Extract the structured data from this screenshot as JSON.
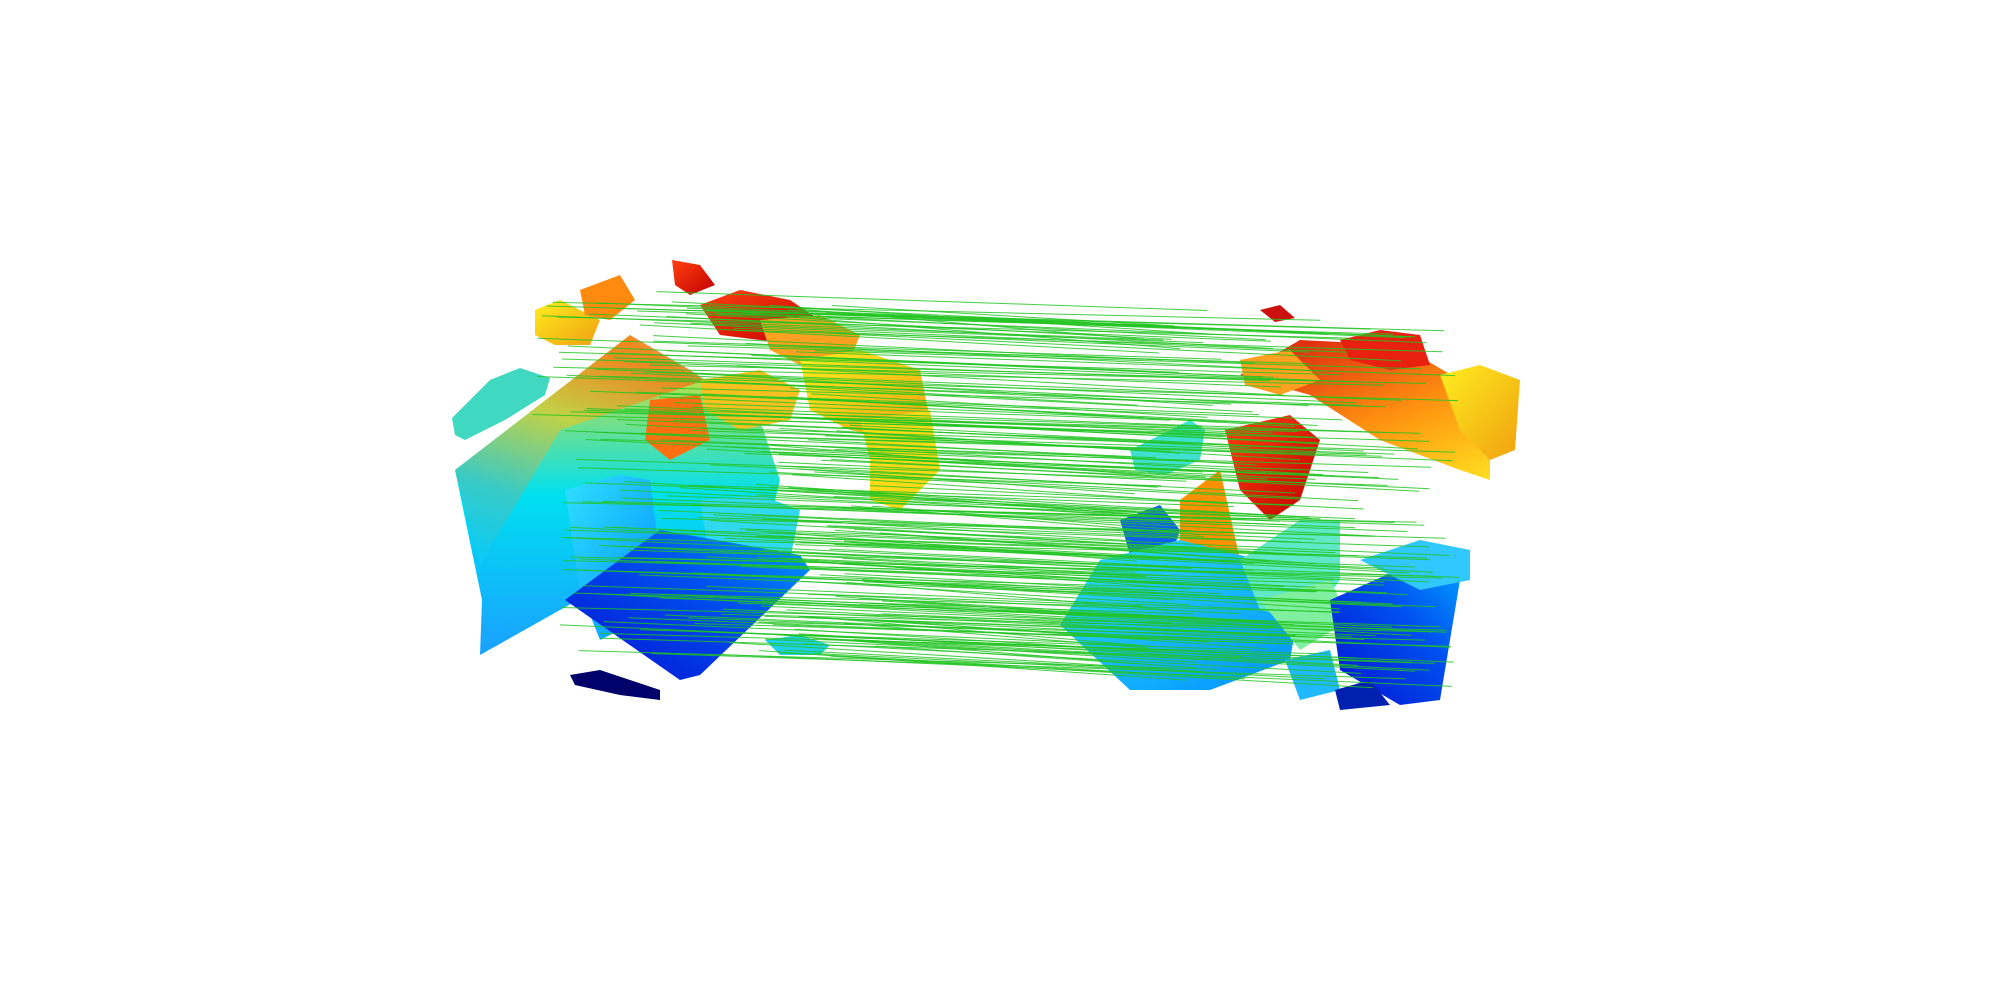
{
  "figure": {
    "type": "point-cloud-registration-visualization",
    "background_color": "#ffffff",
    "correspondence_line_color": "#22c422",
    "colormap": "jet",
    "colormap_stops": [
      "#00007f",
      "#0000ff",
      "#0080ff",
      "#00ffff",
      "#80ff80",
      "#ffff00",
      "#ff8000",
      "#ff0000",
      "#7f0000"
    ],
    "clouds": [
      {
        "id": "source",
        "position": "left"
      },
      {
        "id": "target",
        "position": "right"
      }
    ],
    "approximate_correspondence_count": 260
  }
}
